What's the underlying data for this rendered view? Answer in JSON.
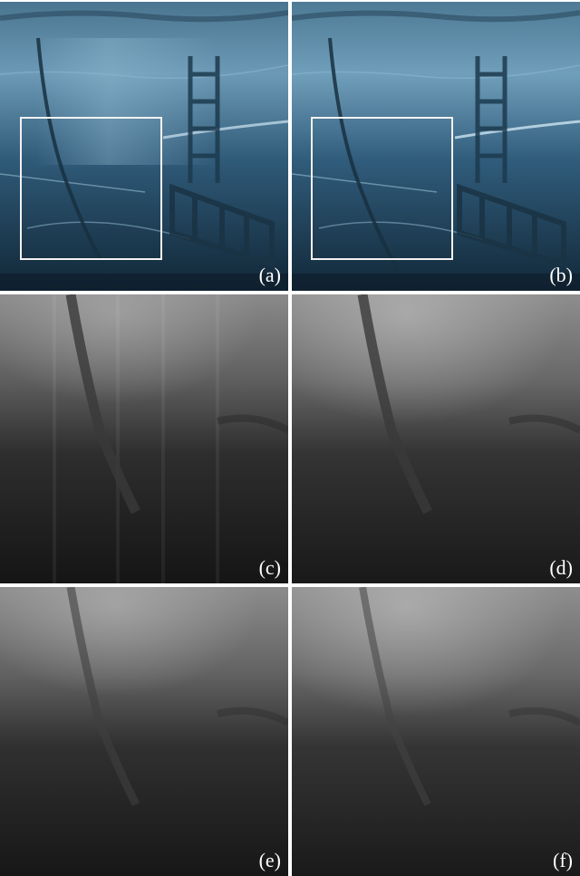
{
  "panels": [
    {
      "label": "(a)",
      "type": "color"
    },
    {
      "label": "(b)",
      "type": "color"
    },
    {
      "label": "(c)",
      "type": "grayscale"
    },
    {
      "label": "(d)",
      "type": "grayscale"
    },
    {
      "label": "(e)",
      "type": "grayscale"
    },
    {
      "label": "(f)",
      "type": "grayscale"
    }
  ],
  "colors": {
    "underwater_top": "#5f8fae",
    "underwater_mid": "#2f5a78",
    "underwater_bottom": "#0f2233",
    "roi_box": "#f2f2f2",
    "label_text": "#ffffff",
    "separator": "#ffffff"
  }
}
